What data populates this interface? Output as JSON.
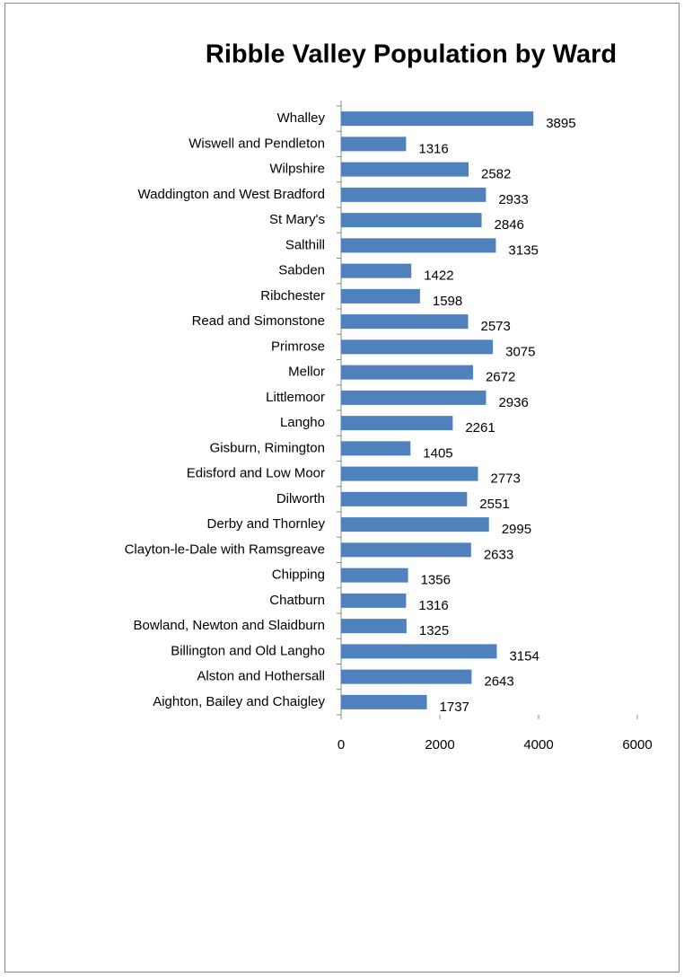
{
  "chart_data": {
    "type": "bar",
    "orientation": "horizontal",
    "title": "Ribble Valley Population by Ward",
    "categories": [
      "Whalley",
      "Wiswell and Pendleton",
      "Wilpshire",
      "Waddington and West Bradford",
      "St Mary's",
      "Salthill",
      "Sabden",
      "Ribchester",
      "Read and Simonstone",
      "Primrose",
      "Mellor",
      "Littlemoor",
      "Langho",
      "Gisburn, Rimington",
      "Edisford and Low Moor",
      "Dilworth",
      "Derby and Thornley",
      "Clayton-le-Dale with Ramsgreave",
      "Chipping",
      "Chatburn",
      "Bowland, Newton and Slaidburn",
      "Billington and Old Langho",
      "Alston and Hothersall",
      "Aighton, Bailey and Chaigley"
    ],
    "values": [
      3895,
      1316,
      2582,
      2933,
      2846,
      3135,
      1422,
      1598,
      2573,
      3075,
      2672,
      2936,
      2261,
      1405,
      2773,
      2551,
      2995,
      2633,
      1356,
      1316,
      1325,
      3154,
      2643,
      1737
    ],
    "color": "#4f81bd",
    "xlim": [
      0,
      6000
    ],
    "xticks": [
      0,
      2000,
      4000,
      6000
    ],
    "grid": false
  }
}
